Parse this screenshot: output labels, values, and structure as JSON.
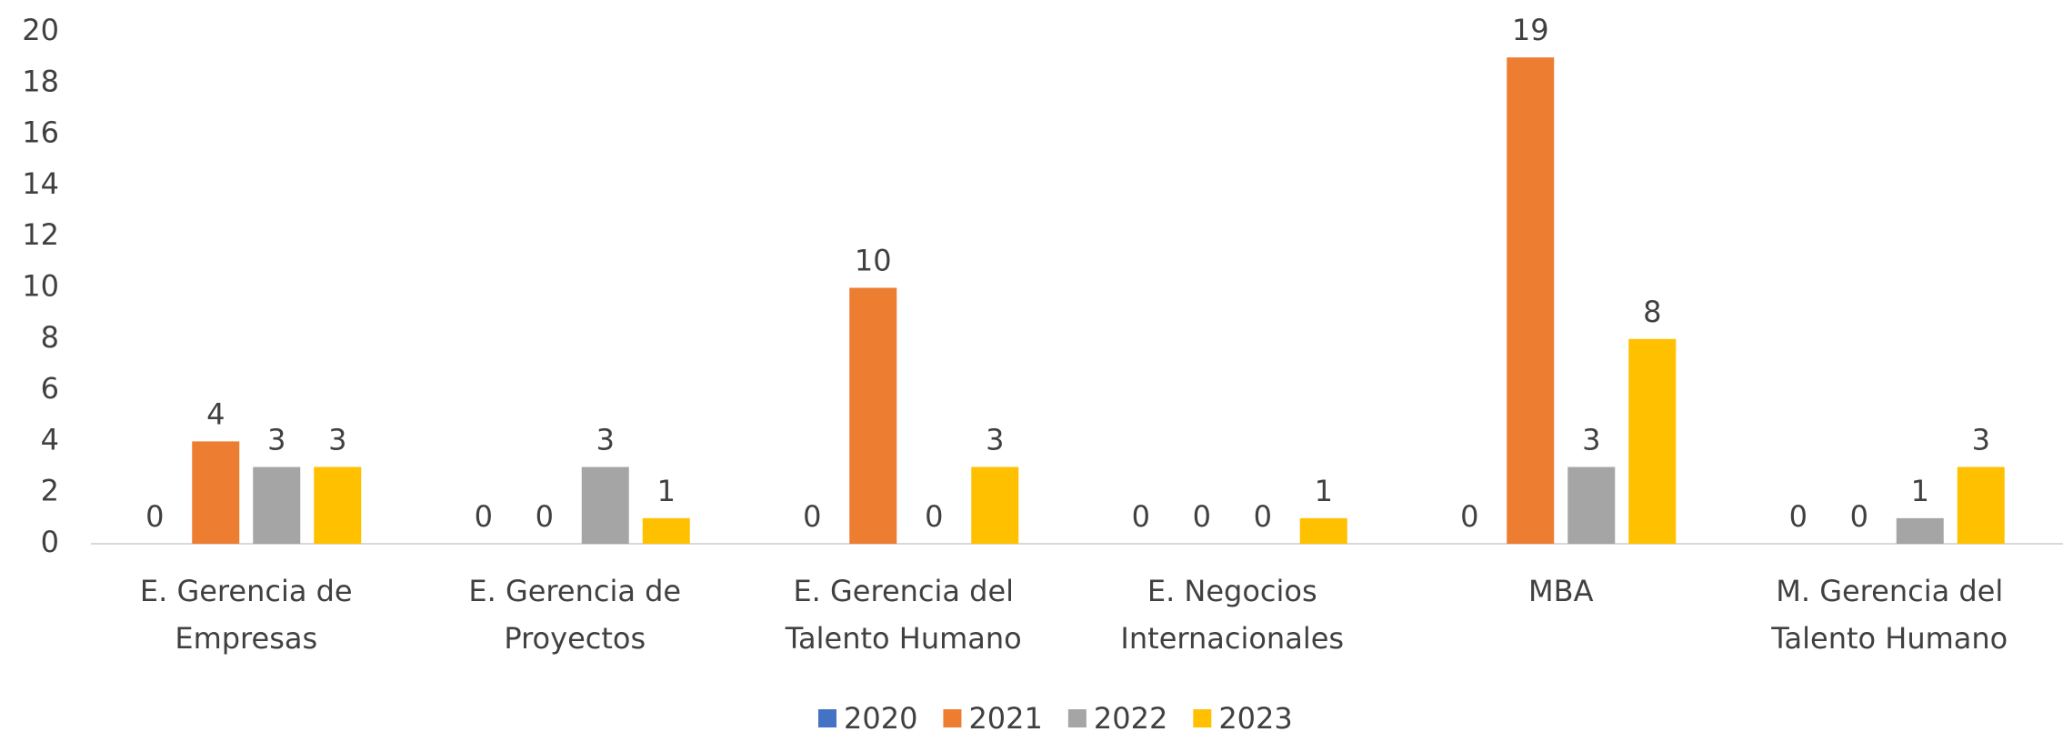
{
  "chart_data": {
    "type": "bar",
    "categories": [
      "E. Gerencia de Empresas",
      "E. Gerencia de Proyectos",
      "E. Gerencia del Talento Humano",
      "E. Negocios Internacionales",
      "MBA",
      "M. Gerencia del Talento Humano"
    ],
    "series": [
      {
        "name": "2020",
        "color": "#4472c4",
        "values": [
          0,
          0,
          0,
          0,
          0,
          0
        ]
      },
      {
        "name": "2021",
        "color": "#ed7d31",
        "values": [
          4,
          0,
          10,
          0,
          19,
          0
        ]
      },
      {
        "name": "2022",
        "color": "#a5a5a5",
        "values": [
          3,
          3,
          0,
          0,
          3,
          1
        ]
      },
      {
        "name": "2023",
        "color": "#ffc000",
        "values": [
          3,
          1,
          3,
          1,
          8,
          3
        ]
      }
    ],
    "ylim": [
      0,
      20
    ],
    "yticks": [
      0,
      2,
      4,
      6,
      8,
      10,
      12,
      14,
      16,
      18,
      20
    ],
    "grid": false,
    "legend": "bottom"
  }
}
